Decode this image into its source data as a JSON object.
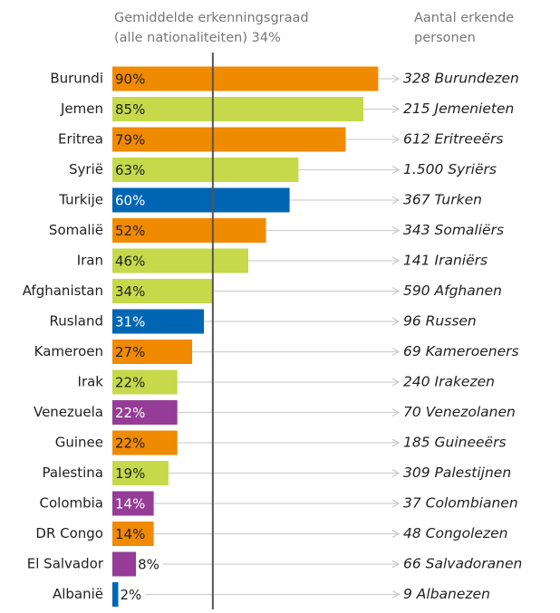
{
  "chart_data": {
    "type": "bar",
    "orientation": "horizontal",
    "header_left": [
      "Gemiddelde erkenningsgraad",
      "(alle nationaliteiten) 34%"
    ],
    "header_right": [
      "Aantal erkende",
      "personen"
    ],
    "reference_value": 34,
    "categories": [
      "Burundi",
      "Jemen",
      "Eritrea",
      "Syrië",
      "Turkije",
      "Somalië",
      "Iran",
      "Afghanistan",
      "Rusland",
      "Kameroen",
      "Irak",
      "Venezuela",
      "Guinee",
      "Palestina",
      "Colombia",
      "DR Congo",
      "El Salvador",
      "Albanië"
    ],
    "values": [
      90,
      85,
      79,
      63,
      60,
      52,
      46,
      34,
      31,
      27,
      22,
      22,
      22,
      19,
      14,
      14,
      8,
      2
    ],
    "value_labels": [
      "90%",
      "85%",
      "79%",
      "63%",
      "60%",
      "52%",
      "46%",
      "34%",
      "31%",
      "27%",
      "22%",
      "22%",
      "22%",
      "19%",
      "14%",
      "14%",
      "8%",
      "2%"
    ],
    "colors": [
      "#f08a00",
      "#c5d94a",
      "#f08a00",
      "#c5d94a",
      "#0066b3",
      "#f08a00",
      "#c5d94a",
      "#c5d94a",
      "#0066b3",
      "#f08a00",
      "#c5d94a",
      "#953d96",
      "#f08a00",
      "#c5d94a",
      "#953d96",
      "#f08a00",
      "#953d96",
      "#0066b3"
    ],
    "annotations": [
      "328 Burundezen",
      "215 Jemenieten",
      "612 Eritreeërs",
      "1.500 Syriërs",
      "367 Turken",
      "343 Somaliërs",
      "141 Iraniërs",
      "590 Afghanen",
      "96 Russen",
      "69 Kameroeners",
      "240 Irakezen",
      "70 Venezolanen",
      "185 Guineeërs",
      "309 Palestijnen",
      "37 Colombianen",
      "48 Congolezen",
      "66 Salvadoranen",
      "9 Albanezen"
    ],
    "xlim": [
      0,
      100
    ]
  }
}
